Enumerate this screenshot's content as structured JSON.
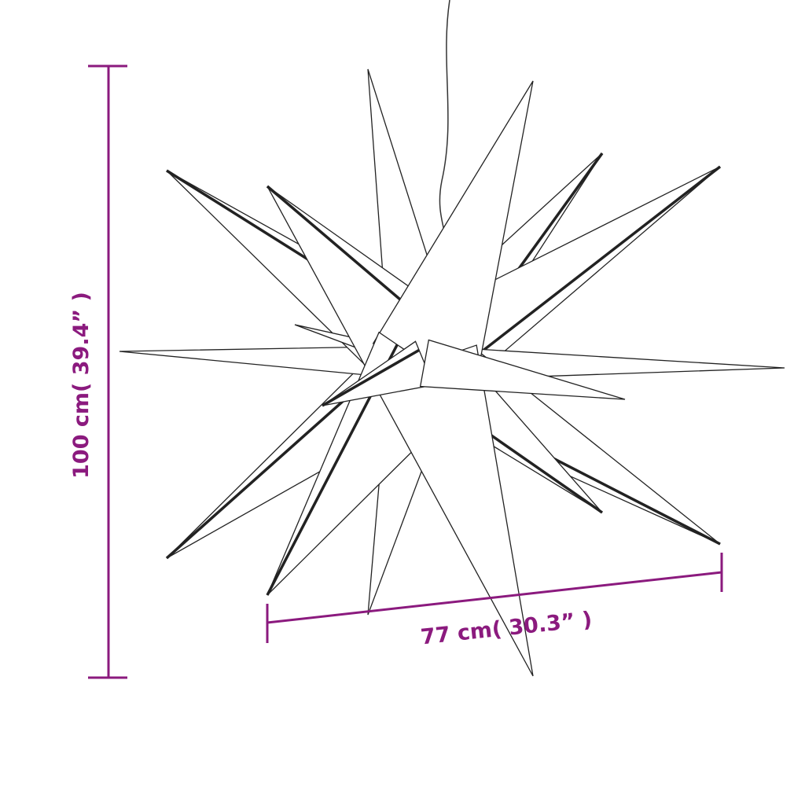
{
  "colors": {
    "dimension": "#8b1a7e",
    "outline": "#222222"
  },
  "dimensions": {
    "height_label": "100 cm( 39.4” )",
    "width_label": "77 cm( 30.3” )"
  },
  "illustration": "star-lamp"
}
